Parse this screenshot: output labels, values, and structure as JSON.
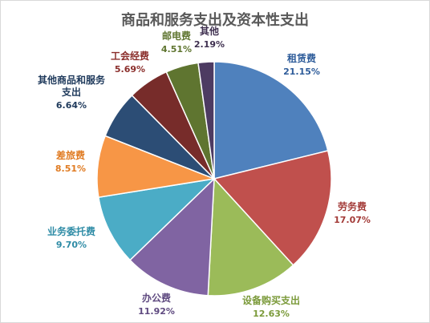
{
  "chart_data": {
    "type": "pie",
    "title": "商品和服务支出及资本性支出",
    "slices": [
      {
        "label": [
          "租赁费"
        ],
        "value": 21.15,
        "display": "21.15%",
        "color": "#4f81bd",
        "text_color": "#2e5c9a"
      },
      {
        "label": [
          "劳务费"
        ],
        "value": 17.07,
        "display": "17.07%",
        "color": "#c0504d",
        "text_color": "#a33b38"
      },
      {
        "label": [
          "设备购买支出"
        ],
        "value": 12.63,
        "display": "12.63%",
        "color": "#9bbb59",
        "text_color": "#7b9a3a"
      },
      {
        "label": [
          "办公费"
        ],
        "value": 11.92,
        "display": "11.92%",
        "color": "#8064a2",
        "text_color": "#5f4a80"
      },
      {
        "label": [
          "业务委托费"
        ],
        "value": 9.7,
        "display": "9.70%",
        "color": "#4bacc6",
        "text_color": "#2f8ca6"
      },
      {
        "label": [
          "差旅费"
        ],
        "value": 8.51,
        "display": "8.51%",
        "color": "#f79646",
        "text_color": "#e07b22"
      },
      {
        "label": [
          "其他商品和服务",
          "支出"
        ],
        "value": 6.64,
        "display": "6.64%",
        "color": "#2c4d75",
        "text_color": "#1f3a5c"
      },
      {
        "label": [
          "工会经费"
        ],
        "value": 5.69,
        "display": "5.69%",
        "color": "#772c2a",
        "text_color": "#8b2f2c"
      },
      {
        "label": [
          "邮电费"
        ],
        "value": 4.51,
        "display": "4.51%",
        "color": "#5f7530",
        "text_color": "#5f7530"
      },
      {
        "label": [
          "其他"
        ],
        "value": 2.19,
        "display": "2.19%",
        "color": "#4d3b62",
        "text_color": "#3f3050"
      }
    ]
  }
}
